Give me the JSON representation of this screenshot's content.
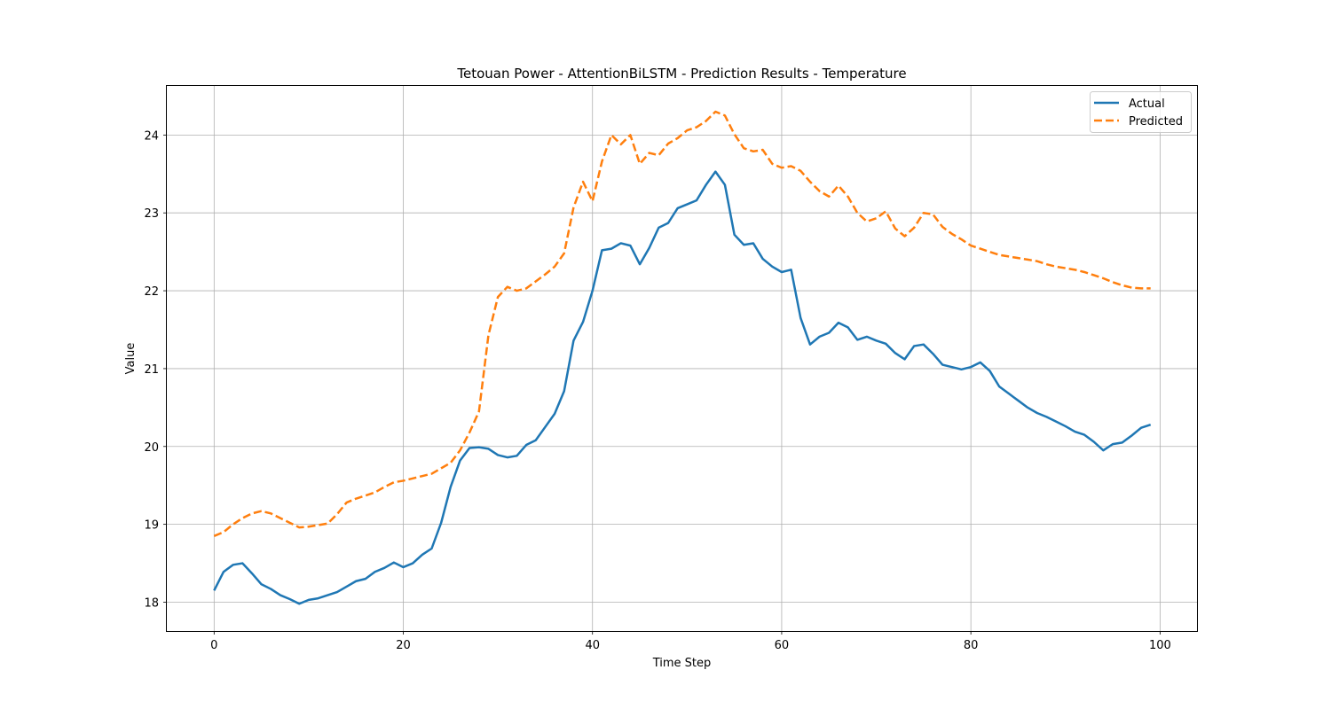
{
  "chart_data": {
    "type": "line",
    "title": "Tetouan Power - AttentionBiLSTM - Prediction Results - Temperature",
    "xlabel": "Time Step",
    "ylabel": "Value",
    "xlim": [
      -5,
      104
    ],
    "ylim": [
      17.63,
      24.63
    ],
    "xticks": [
      0,
      20,
      40,
      60,
      80,
      100
    ],
    "yticks": [
      18,
      19,
      20,
      21,
      22,
      23,
      24
    ],
    "grid": true,
    "legend_position": "top-right",
    "series": [
      {
        "name": "Actual",
        "color": "#1f77b4",
        "style": "solid",
        "values": [
          18.15,
          18.39,
          18.48,
          18.5,
          18.37,
          18.23,
          18.17,
          18.09,
          18.04,
          17.98,
          18.03,
          18.05,
          18.09,
          18.13,
          18.2,
          18.27,
          18.3,
          18.39,
          18.44,
          18.51,
          18.45,
          18.5,
          18.61,
          18.69,
          19.02,
          19.48,
          19.82,
          19.98,
          19.99,
          19.97,
          19.89,
          19.86,
          19.88,
          20.02,
          20.08,
          20.25,
          20.42,
          20.71,
          21.36,
          21.6,
          22.0,
          22.52,
          22.54,
          22.61,
          22.58,
          22.34,
          22.55,
          22.81,
          22.87,
          23.06,
          23.11,
          23.16,
          23.36,
          23.53,
          23.36,
          22.72,
          22.59,
          22.61,
          22.41,
          22.31,
          22.24,
          22.27,
          21.65,
          21.31,
          21.41,
          21.46,
          21.59,
          21.53,
          21.37,
          21.41,
          21.36,
          21.32,
          21.2,
          21.12,
          21.29,
          21.31,
          21.19,
          21.05,
          21.02,
          20.99,
          21.02,
          21.08,
          20.97,
          20.77,
          20.68,
          20.59,
          20.5,
          20.43,
          20.38,
          20.32,
          20.26,
          20.19,
          20.15,
          20.06,
          19.95,
          20.03,
          20.05,
          20.14,
          20.24,
          20.28
        ]
      },
      {
        "name": "Predicted",
        "color": "#ff7f0e",
        "style": "dashed",
        "values": [
          18.85,
          18.9,
          19.0,
          19.08,
          19.14,
          19.17,
          19.14,
          19.08,
          19.02,
          18.96,
          18.97,
          18.99,
          19.01,
          19.13,
          19.28,
          19.33,
          19.37,
          19.41,
          19.48,
          19.54,
          19.56,
          19.59,
          19.62,
          19.65,
          19.72,
          19.79,
          19.95,
          20.18,
          20.45,
          21.43,
          21.92,
          22.05,
          22.0,
          22.03,
          22.12,
          22.21,
          22.31,
          22.48,
          23.07,
          23.4,
          23.15,
          23.66,
          24.0,
          23.88,
          24.0,
          23.63,
          23.77,
          23.74,
          23.89,
          23.96,
          24.06,
          24.1,
          24.18,
          24.3,
          24.25,
          24.01,
          23.83,
          23.79,
          23.81,
          23.63,
          23.58,
          23.6,
          23.54,
          23.4,
          23.28,
          23.21,
          23.35,
          23.21,
          23.0,
          22.89,
          22.93,
          23.02,
          22.8,
          22.7,
          22.81,
          23.0,
          22.98,
          22.82,
          22.73,
          22.66,
          22.58,
          22.54,
          22.5,
          22.46,
          22.44,
          22.42,
          22.4,
          22.38,
          22.34,
          22.31,
          22.29,
          22.27,
          22.24,
          22.2,
          22.16,
          22.11,
          22.07,
          22.04,
          22.03,
          22.03
        ]
      }
    ]
  }
}
